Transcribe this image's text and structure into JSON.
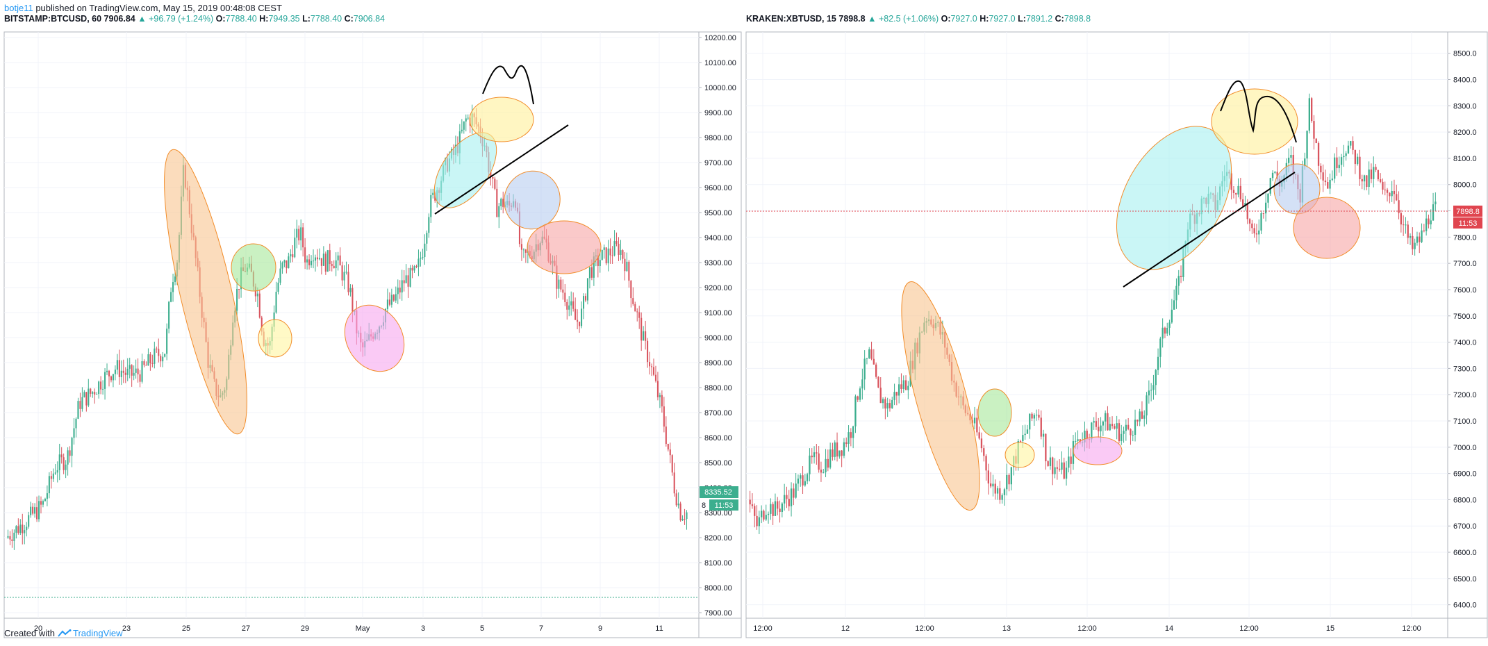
{
  "header": {
    "author": "botje11",
    "published_text": "published on TradingView.com, May 15, 2019 00:48:08 CEST"
  },
  "footer": {
    "created_with": "Created with",
    "brand": "TradingView"
  },
  "chart_data": [
    {
      "type": "candlestick",
      "symbol": "BITSTAMP:BTCUSD, 60",
      "last": "7906.84",
      "change": "▲ +96.79 (+1.24%)",
      "ohlc": {
        "O": "7788.40",
        "H": "7949.35",
        "L": "7788.40",
        "C": "7906.84"
      },
      "y_ticks": [
        "10200.00",
        "10100.00",
        "10000.00",
        "9900.00",
        "9800.00",
        "9700.00",
        "9600.00",
        "9500.00",
        "9400.00",
        "9300.00",
        "9200.00",
        "9100.00",
        "9000.00",
        "8900.00",
        "8800.00",
        "8700.00",
        "8600.00",
        "8500.00",
        "8400.00",
        "8300.00",
        "8200.00",
        "8100.00",
        "8000.00",
        "7900.00"
      ],
      "x_ticks": [
        "20",
        "23",
        "25",
        "27",
        "29",
        "May",
        "3",
        "5",
        "7",
        "9",
        "11"
      ],
      "ylim": [
        7900,
        10200
      ],
      "price_label": "8335.52",
      "countdown_label": "11:53",
      "cut_label": "8",
      "price_path": [
        [
          0,
          8200
        ],
        [
          3,
          8260
        ],
        [
          6,
          8330
        ],
        [
          8,
          8480
        ],
        [
          10,
          8520
        ],
        [
          12,
          8740
        ],
        [
          14,
          8780
        ],
        [
          16,
          8840
        ],
        [
          18,
          8880
        ],
        [
          20,
          8850
        ],
        [
          22,
          8860
        ],
        [
          24,
          8920
        ],
        [
          26,
          8950
        ],
        [
          27,
          9230
        ],
        [
          28,
          9320
        ],
        [
          29,
          9680
        ],
        [
          30,
          9500
        ],
        [
          31,
          9300
        ],
        [
          32,
          9100
        ],
        [
          33,
          8900
        ],
        [
          34,
          8800
        ],
        [
          35,
          8760
        ],
        [
          36,
          8830
        ],
        [
          37,
          9100
        ],
        [
          38,
          9220
        ],
        [
          39,
          9280
        ],
        [
          40,
          9250
        ],
        [
          41,
          9180
        ],
        [
          42,
          9000
        ],
        [
          43,
          8960
        ],
        [
          44,
          9180
        ],
        [
          45,
          9280
        ],
        [
          46,
          9300
        ],
        [
          47,
          9380
        ],
        [
          48,
          9420
        ],
        [
          49,
          9300
        ],
        [
          50,
          9350
        ],
        [
          51,
          9330
        ],
        [
          52,
          9300
        ],
        [
          53,
          9320
        ],
        [
          54,
          9300
        ],
        [
          55,
          9250
        ],
        [
          56,
          9200
        ],
        [
          57,
          9050
        ],
        [
          58,
          8950
        ],
        [
          59,
          8980
        ],
        [
          60,
          9030
        ],
        [
          61,
          9060
        ],
        [
          62,
          9120
        ],
        [
          63,
          9140
        ],
        [
          64,
          9180
        ],
        [
          65,
          9230
        ],
        [
          66,
          9240
        ],
        [
          67,
          9260
        ],
        [
          68,
          9360
        ],
        [
          69,
          9520
        ],
        [
          70,
          9580
        ],
        [
          71,
          9640
        ],
        [
          72,
          9700
        ],
        [
          73,
          9730
        ],
        [
          74,
          9790
        ],
        [
          75,
          9870
        ],
        [
          76,
          9880
        ],
        [
          77,
          9840
        ],
        [
          78,
          9780
        ],
        [
          79,
          9650
        ],
        [
          80,
          9520
        ],
        [
          81,
          9540
        ],
        [
          82,
          9520
        ],
        [
          83,
          9580
        ],
        [
          84,
          9310
        ],
        [
          85,
          9330
        ],
        [
          86,
          9350
        ],
        [
          87,
          9400
        ],
        [
          88,
          9380
        ],
        [
          89,
          9300
        ],
        [
          90,
          9210
        ],
        [
          91,
          9180
        ],
        [
          92,
          9120
        ],
        [
          93,
          9060
        ],
        [
          94,
          9100
        ],
        [
          95,
          9260
        ],
        [
          96,
          9290
        ],
        [
          97,
          9320
        ],
        [
          98,
          9330
        ],
        [
          99,
          9350
        ],
        [
          100,
          9360
        ],
        [
          101,
          9300
        ],
        [
          102,
          9180
        ],
        [
          103,
          9080
        ],
        [
          104,
          8980
        ],
        [
          105,
          8900
        ],
        [
          106,
          8800
        ],
        [
          107,
          8700
        ],
        [
          108,
          8550
        ],
        [
          109,
          8400
        ],
        [
          110,
          8300
        ],
        [
          111,
          8300
        ]
      ]
    },
    {
      "type": "candlestick",
      "symbol": "KRAKEN:XBTUSD, 15",
      "last": "7898.8",
      "change": "▲ +82.5 (+1.06%)",
      "ohlc": {
        "O": "7927.0",
        "H": "7927.0",
        "L": "7891.2",
        "C": "7898.8"
      },
      "y_ticks": [
        "8500.0",
        "8400.0",
        "8300.0",
        "8200.0",
        "8100.0",
        "8000.0",
        "7900.0",
        "7800.0",
        "7700.0",
        "7600.0",
        "7500.0",
        "7400.0",
        "7300.0",
        "7200.0",
        "7100.0",
        "7000.0",
        "6900.0",
        "6800.0",
        "6700.0",
        "6600.0",
        "6500.0",
        "6400.0"
      ],
      "x_ticks": [
        "12:00",
        "12",
        "12:00",
        "13",
        "12:00",
        "14",
        "12:00",
        "15",
        "12:00"
      ],
      "ylim": [
        6370,
        8560
      ],
      "price_label": "7898.8",
      "countdown_label": "11:53",
      "price_path": [
        [
          0,
          6800
        ],
        [
          2,
          6700
        ],
        [
          4,
          6780
        ],
        [
          6,
          6760
        ],
        [
          8,
          6800
        ],
        [
          10,
          6830
        ],
        [
          12,
          6900
        ],
        [
          14,
          6950
        ],
        [
          16,
          6930
        ],
        [
          18,
          6980
        ],
        [
          20,
          7000
        ],
        [
          22,
          7060
        ],
        [
          24,
          7250
        ],
        [
          26,
          7350
        ],
        [
          28,
          7200
        ],
        [
          30,
          7150
        ],
        [
          32,
          7220
        ],
        [
          34,
          7250
        ],
        [
          36,
          7380
        ],
        [
          38,
          7500
        ],
        [
          40,
          7480
        ],
        [
          42,
          7400
        ],
        [
          44,
          7250
        ],
        [
          46,
          7150
        ],
        [
          48,
          7100
        ],
        [
          50,
          7000
        ],
        [
          52,
          6850
        ],
        [
          54,
          6830
        ],
        [
          56,
          6900
        ],
        [
          58,
          7000
        ],
        [
          60,
          7080
        ],
        [
          62,
          7150
        ],
        [
          64,
          6950
        ],
        [
          66,
          6920
        ],
        [
          68,
          6900
        ],
        [
          70,
          7020
        ],
        [
          72,
          7050
        ],
        [
          74,
          7080
        ],
        [
          76,
          7100
        ],
        [
          78,
          7080
        ],
        [
          80,
          7050
        ],
        [
          82,
          7080
        ],
        [
          84,
          7100
        ],
        [
          86,
          7200
        ],
        [
          88,
          7380
        ],
        [
          90,
          7500
        ],
        [
          92,
          7600
        ],
        [
          94,
          7850
        ],
        [
          96,
          7900
        ],
        [
          98,
          7950
        ],
        [
          100,
          7920
        ],
        [
          102,
          8050
        ],
        [
          104,
          8000
        ],
        [
          106,
          7950
        ],
        [
          108,
          7780
        ],
        [
          110,
          7900
        ],
        [
          112,
          8050
        ],
        [
          114,
          8000
        ],
        [
          116,
          8100
        ],
        [
          118,
          7950
        ],
        [
          120,
          8300
        ],
        [
          122,
          8100
        ],
        [
          124,
          8000
        ],
        [
          126,
          8100
        ],
        [
          128,
          8150
        ],
        [
          130,
          8100
        ],
        [
          132,
          8000
        ],
        [
          134,
          8050
        ],
        [
          136,
          7950
        ],
        [
          138,
          8000
        ],
        [
          140,
          7850
        ],
        [
          142,
          7750
        ],
        [
          144,
          7800
        ],
        [
          146,
          7900
        ],
        [
          147,
          7900
        ]
      ]
    }
  ]
}
